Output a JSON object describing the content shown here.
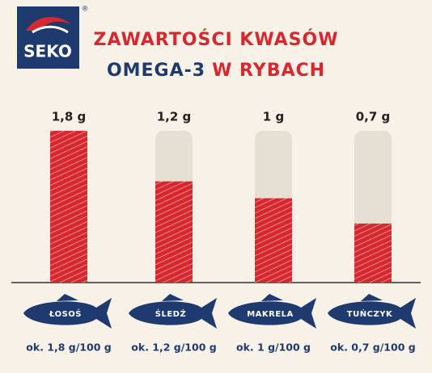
{
  "chart_data": {
    "type": "bar",
    "brand": "SEKO",
    "brand_mark": "®",
    "title": "ZAWARTOŚCI KWASÓW",
    "title_color": "#d7282f",
    "subtitle_parts": [
      {
        "text": "OMEGA-3",
        "color": "#1e3a6e"
      },
      {
        "text": "W RYBACH",
        "color": "#d7282f"
      }
    ],
    "categories": [
      "ŁOSOŚ",
      "ŚLEDŹ",
      "MAKRELA",
      "TUŃCZYK"
    ],
    "values": [
      1.8,
      1.2,
      1,
      0.7
    ],
    "value_labels": [
      "1,8 g",
      "1,2 g",
      "1 g",
      "0,7 g"
    ],
    "notes": [
      "ok. 1,8 g/100 g",
      "ok. 1,2 g/100 g",
      "ok. 1 g/100 g",
      "ok. 0,7 g/100 g"
    ],
    "color": "#d7282f",
    "track_color": "#e6dfd4",
    "fish_color": "#1e3a6e"
  }
}
